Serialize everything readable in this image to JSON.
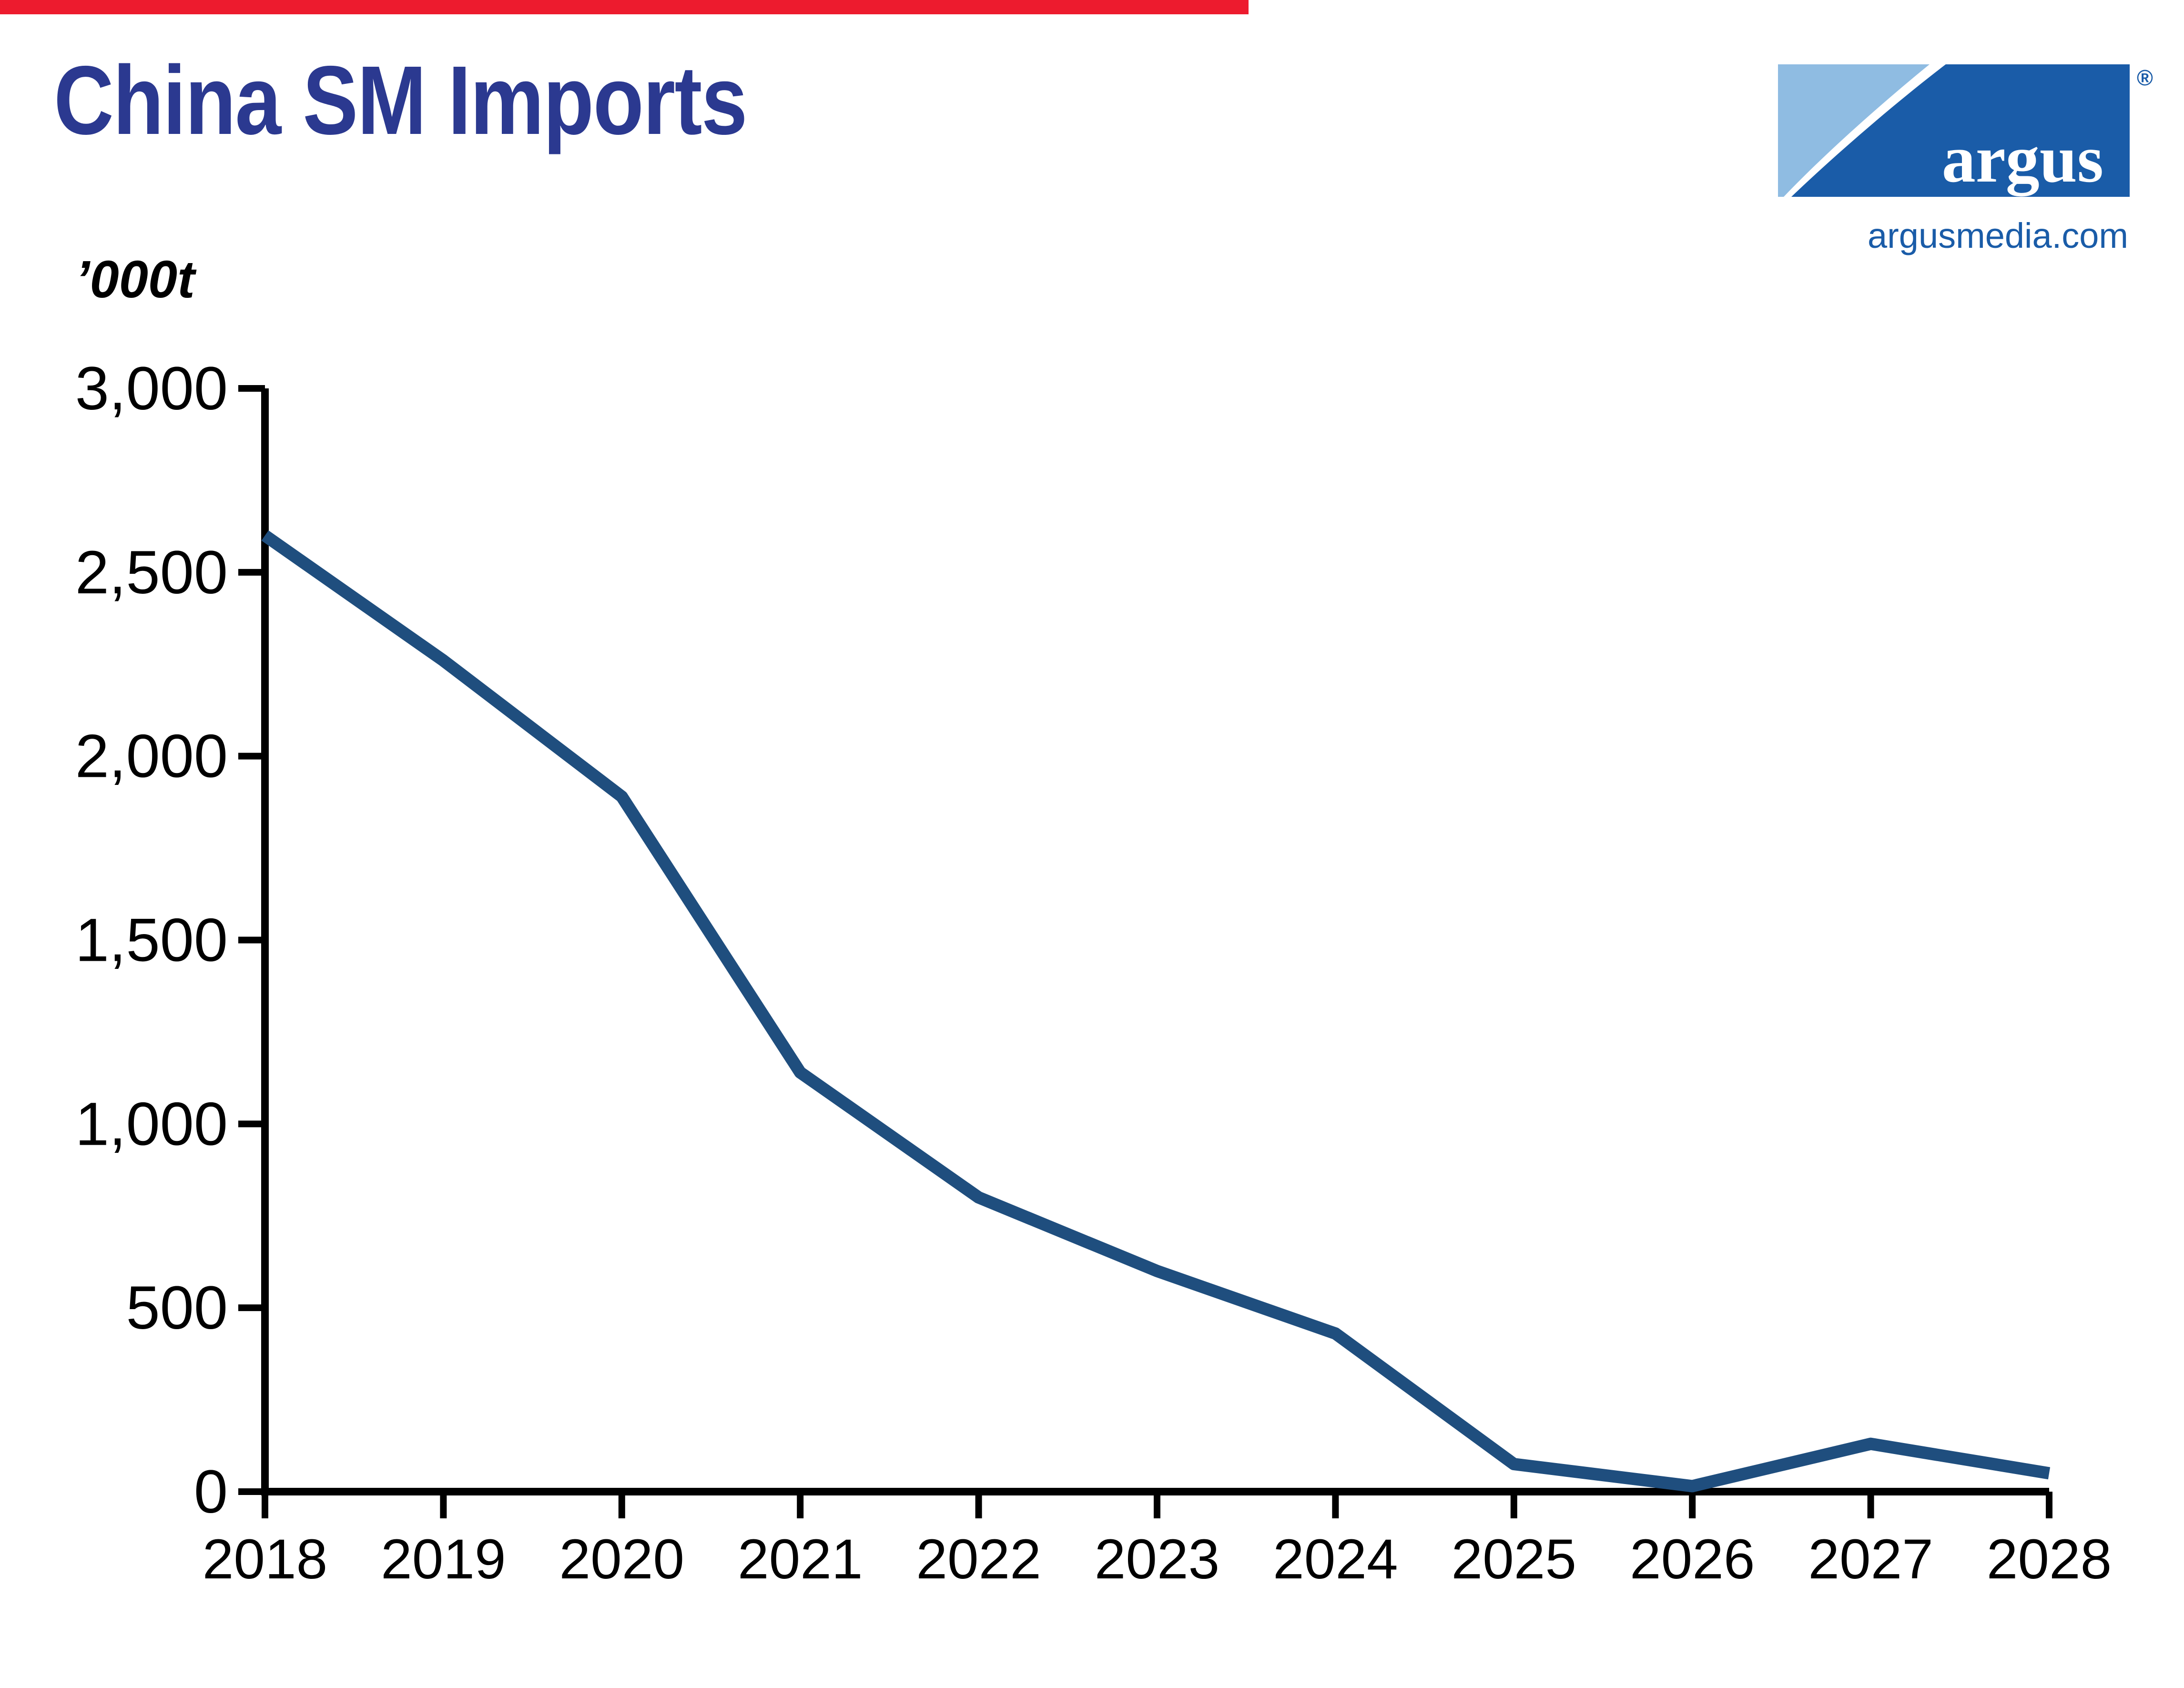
{
  "page": {
    "background": "#ffffff",
    "top_bar_color": "#ED1B2E"
  },
  "header": {
    "title": "China SM Imports",
    "title_color": "#2B3990"
  },
  "branding": {
    "logo_text": "argus",
    "registered_mark": "®",
    "website": "argusmedia.com",
    "logo_dark_blue": "#1A5CA8",
    "logo_light_blue": "#8FBCE2",
    "logo_text_color": "#ffffff"
  },
  "chart_data": {
    "type": "line",
    "title": "China SM Imports",
    "unit_label": "’000t",
    "x": [
      2018,
      2019,
      2020,
      2021,
      2022,
      2023,
      2024,
      2025,
      2026,
      2027,
      2028
    ],
    "xtick_labels": [
      "2018",
      "2019",
      "2020",
      "2021",
      "2022",
      "2023",
      "2024",
      "2025",
      "2026",
      "2027",
      "2028"
    ],
    "series": [
      {
        "name": "China SM imports ('000t)",
        "values": [
          2600,
          2260,
          1890,
          1140,
          800,
          600,
          430,
          75,
          15,
          130,
          50
        ]
      }
    ],
    "ylim": [
      0,
      3000
    ],
    "ytick_step": 500,
    "ytick_labels": [
      "0",
      "500",
      "1,000",
      "1,500",
      "2,000",
      "2,500",
      "3,000"
    ],
    "line_color": "#1F4E7E",
    "axis_color": "#000000",
    "grid": false,
    "legend": false
  }
}
